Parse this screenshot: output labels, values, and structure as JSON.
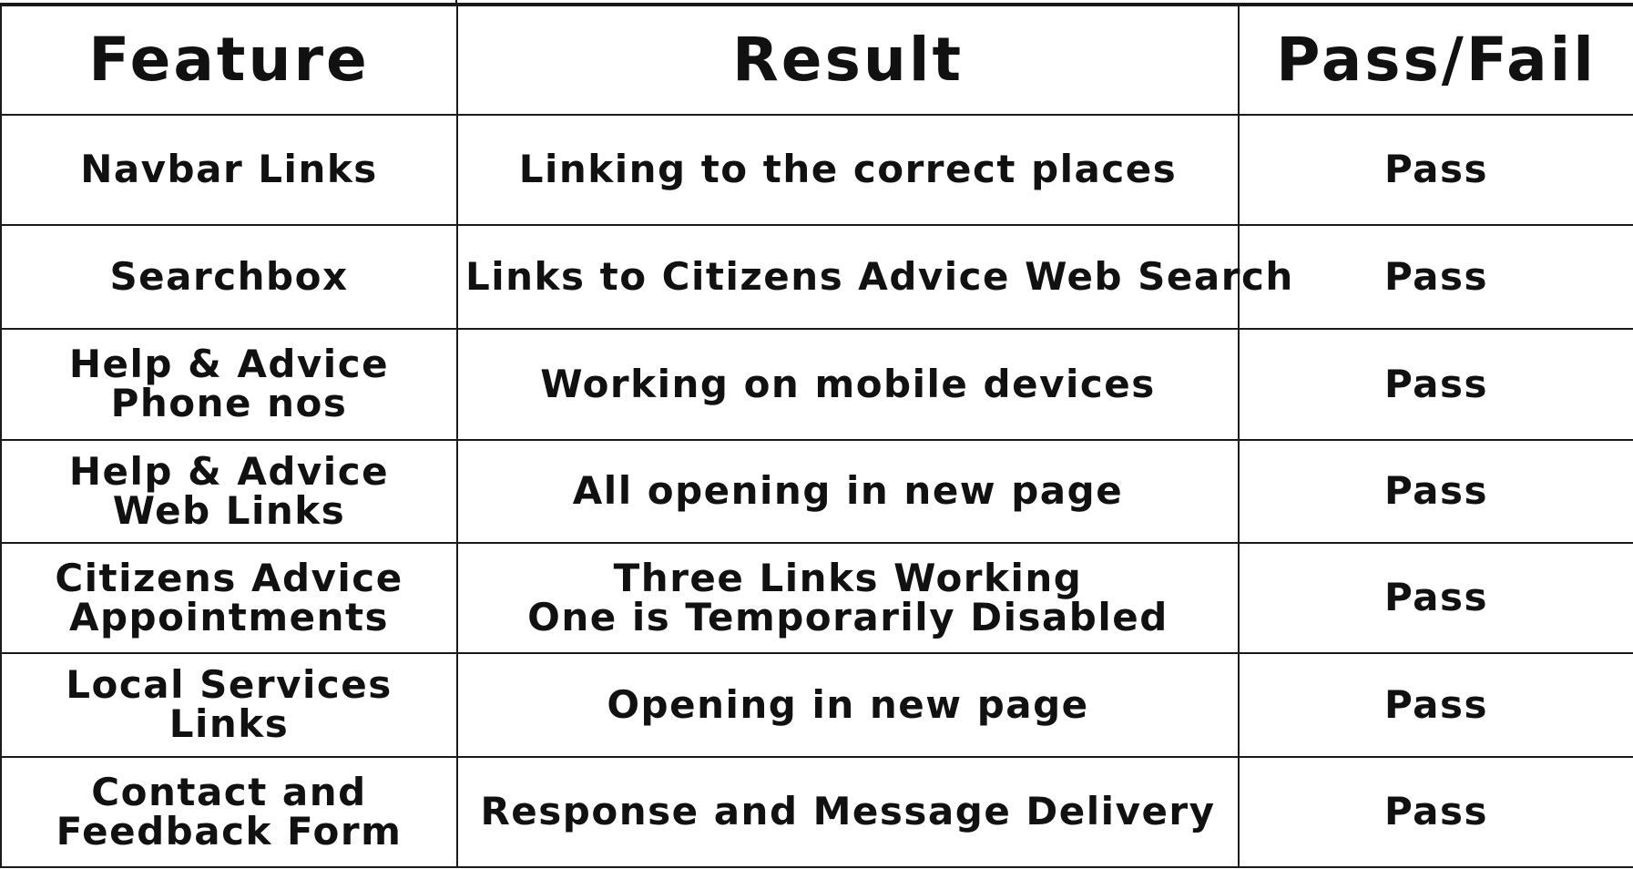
{
  "table": {
    "headers": {
      "feature": "Feature",
      "result": "Result",
      "pass_fail": "Pass/Fail"
    },
    "rows": [
      {
        "feature": [
          "Navbar Links"
        ],
        "result": [
          "Linking to the correct places"
        ],
        "status": "Pass"
      },
      {
        "feature": [
          "Searchbox"
        ],
        "result": [
          "Links to Citizens Advice Web Search"
        ],
        "status": "Pass"
      },
      {
        "feature": [
          "Help & Advice",
          "Phone nos"
        ],
        "result": [
          "Working on mobile devices"
        ],
        "status": "Pass"
      },
      {
        "feature": [
          "Help & Advice",
          "Web Links"
        ],
        "result": [
          "All opening in new page"
        ],
        "status": "Pass"
      },
      {
        "feature": [
          "Citizens Advice",
          "Appointments"
        ],
        "result": [
          "Three Links Working",
          "One is Temporarily Disabled"
        ],
        "status": "Pass"
      },
      {
        "feature": [
          "Local Services",
          "Links"
        ],
        "result": [
          "Opening in new page"
        ],
        "status": "Pass"
      },
      {
        "feature": [
          "Contact and",
          "Feedback Form"
        ],
        "result": [
          "Response and Message Delivery"
        ],
        "status": "Pass"
      }
    ]
  }
}
